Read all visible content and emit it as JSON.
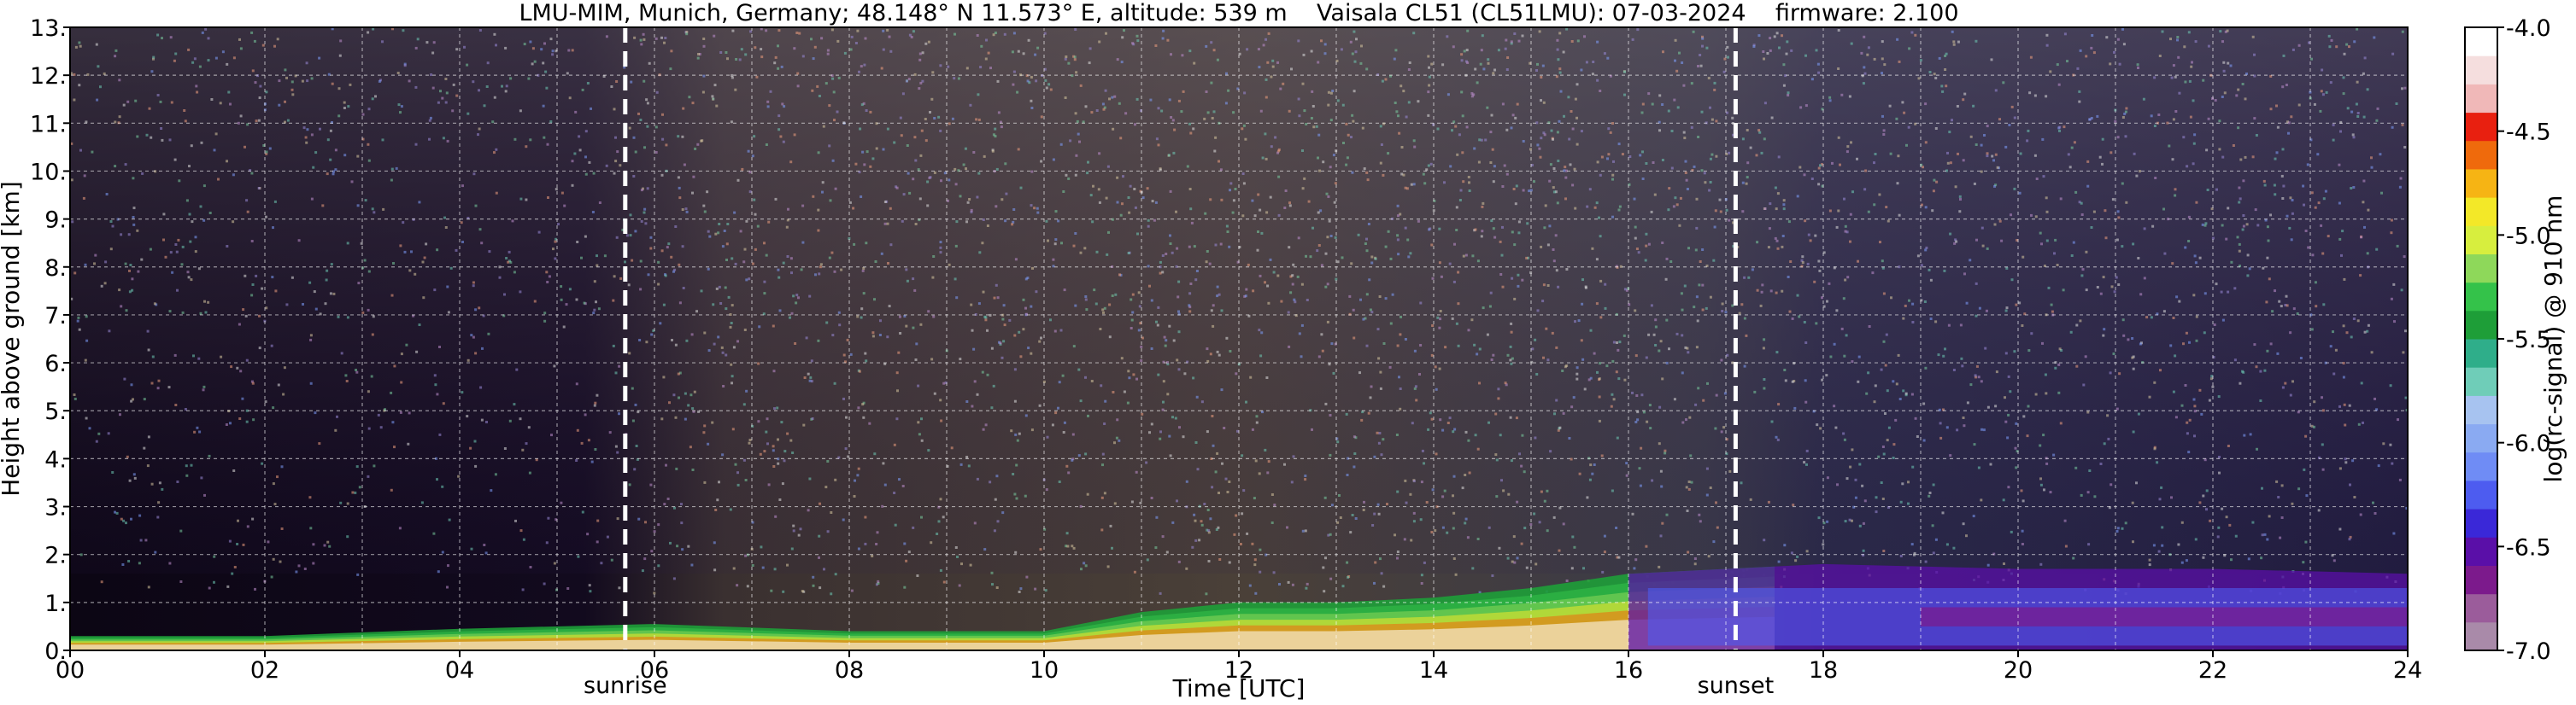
{
  "chart_data": {
    "type": "heatmap",
    "title": "LMU-MIM, Munich, Germany; 48.148° N 11.573° E, altitude: 539 m    Vaisala CL51 (CL51LMU): 07-03-2024    firmware: 2.100",
    "xlabel": "Time [UTC]",
    "ylabel": "Height above ground [km]",
    "xlim": [
      0,
      24
    ],
    "ylim": [
      0,
      13
    ],
    "x_ticks": [
      "00",
      "02",
      "04",
      "06",
      "08",
      "10",
      "12",
      "14",
      "16",
      "18",
      "20",
      "22",
      "24"
    ],
    "y_ticks": [
      "0.",
      "1.",
      "2.",
      "3.",
      "4.",
      "5.",
      "6.",
      "7.",
      "8.",
      "9.",
      "10.",
      "11.",
      "12.",
      "13."
    ],
    "grid": true,
    "annotations": [
      {
        "label": "sunrise",
        "x": 5.7
      },
      {
        "label": "sunset",
        "x": 17.1
      }
    ],
    "colorbar": {
      "label": "log(rc-signal) @ 910 nm",
      "range": [
        -7.0,
        -4.0
      ],
      "ticks": [
        "-4.0",
        "-4.5",
        "-5.0",
        "-5.5",
        "-6.0",
        "-6.5",
        "-7.0"
      ],
      "tick_values": [
        -4.0,
        -4.5,
        -5.0,
        -5.5,
        -6.0,
        -6.5,
        -7.0
      ],
      "colors": [
        "#a98aa9",
        "#9b5c9b",
        "#7c1a8c",
        "#5a0fa8",
        "#3a28d8",
        "#4d5cf0",
        "#6f8cf5",
        "#8aaaf2",
        "#a7c3f0",
        "#6fcdb8",
        "#2fae8a",
        "#1e9e38",
        "#34c24a",
        "#8ed85a",
        "#d7ee3e",
        "#f3e828",
        "#f6b414",
        "#ef6a0c",
        "#e82010",
        "#f0b8b8",
        "#f5dede",
        "#ffffff"
      ]
    },
    "layers": [
      {
        "name": "boundary-layer-top",
        "points": [
          [
            0,
            0.3
          ],
          [
            2,
            0.3
          ],
          [
            4,
            0.45
          ],
          [
            6,
            0.55
          ],
          [
            8,
            0.4
          ],
          [
            10,
            0.4
          ],
          [
            11,
            0.8
          ],
          [
            12,
            1.0
          ],
          [
            13,
            1.0
          ],
          [
            14,
            1.1
          ],
          [
            15,
            1.3
          ],
          [
            16,
            1.6
          ],
          [
            17.5,
            1.75
          ]
        ]
      },
      {
        "name": "residual-layer-top",
        "points": [
          [
            16,
            1.6
          ],
          [
            18,
            1.8
          ],
          [
            20,
            1.7
          ],
          [
            22,
            1.7
          ],
          [
            24,
            1.6
          ]
        ]
      }
    ]
  }
}
